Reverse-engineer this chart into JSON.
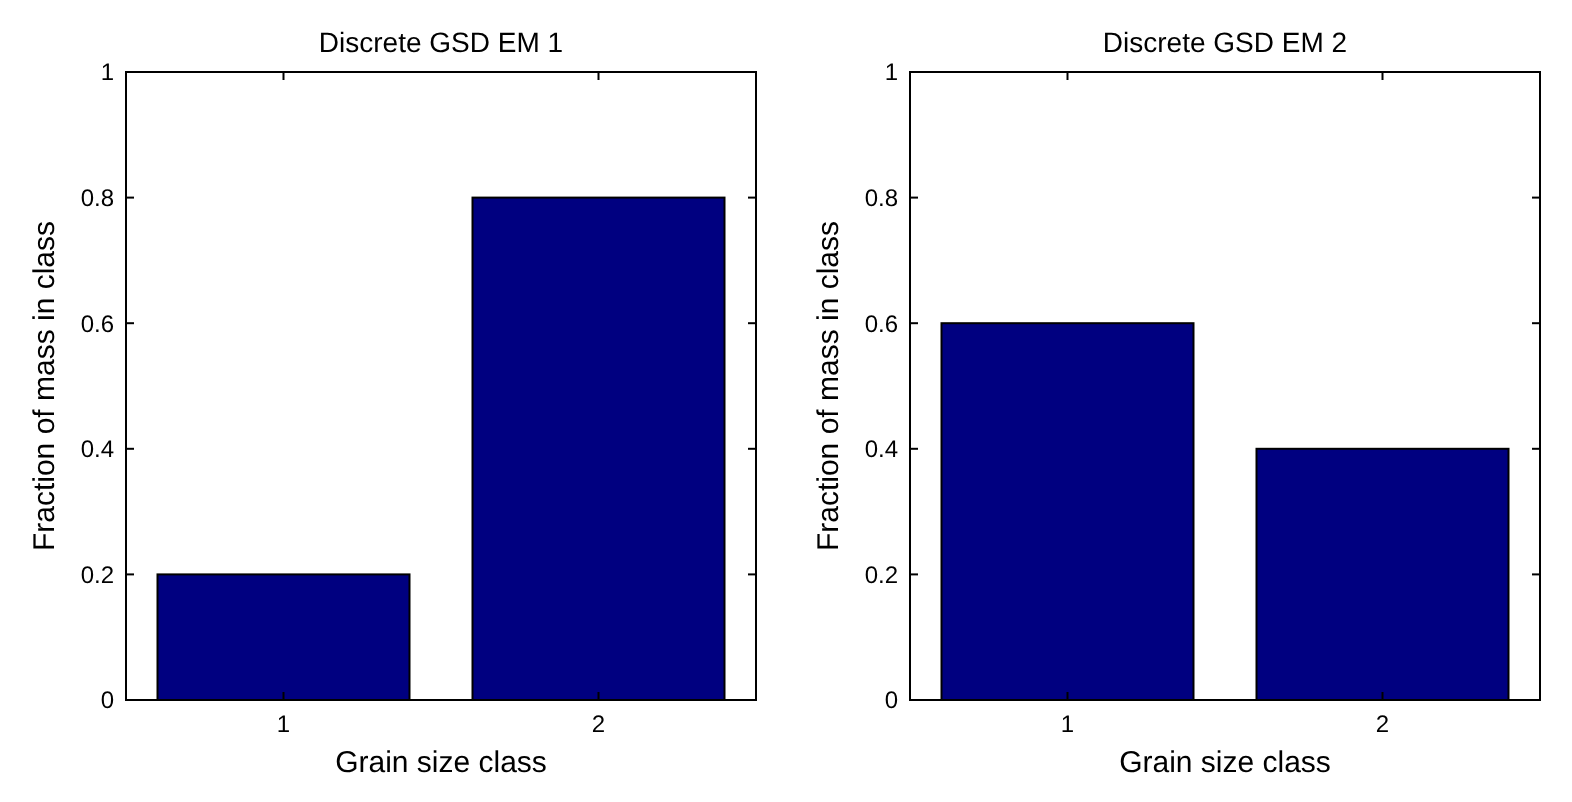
{
  "chart_data": [
    {
      "type": "bar",
      "title": "Discrete GSD EM 1",
      "xlabel": "Grain size class",
      "ylabel": "Fraction of mass in class",
      "categories": [
        "1",
        "2"
      ],
      "values": [
        0.2,
        0.8
      ],
      "color": "#000080",
      "ylim": [
        0,
        1
      ],
      "yticks": [
        0,
        0.2,
        0.4,
        0.6,
        0.8,
        1
      ],
      "grid": false
    },
    {
      "type": "bar",
      "title": "Discrete GSD EM 2",
      "xlabel": "Grain size class",
      "ylabel": "Fraction of mass in class",
      "categories": [
        "1",
        "2"
      ],
      "values": [
        0.6,
        0.4
      ],
      "color": "#000080",
      "ylim": [
        0,
        1
      ],
      "yticks": [
        0,
        0.2,
        0.4,
        0.6,
        0.8,
        1
      ],
      "grid": false
    }
  ]
}
